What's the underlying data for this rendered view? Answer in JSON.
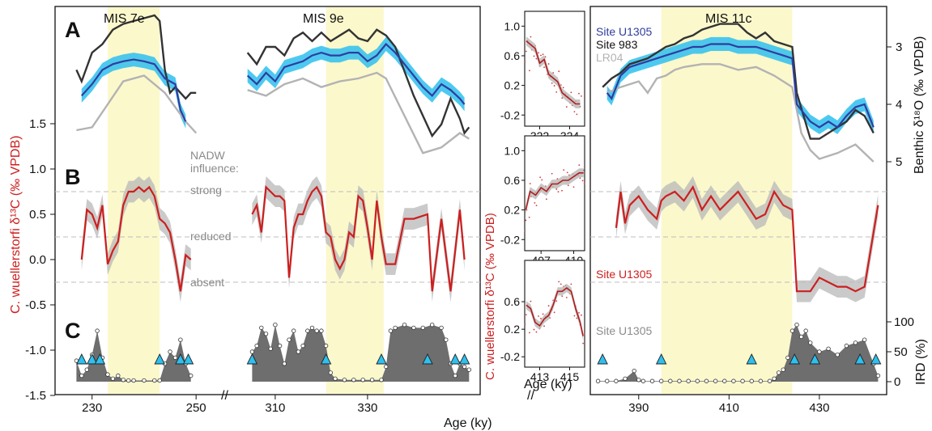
{
  "chart_data": {
    "type": "line",
    "x_axis_label": "Age (ky)",
    "y_axis_left_label": "C. wuellerstorfi δ¹³C (‰ VPDB)",
    "y_axis_right_top_label": "Benthic δ¹⁸O (‰ VPDB)",
    "y_axis_right_bottom_label": "IRD (%)",
    "inset_y_label": "C. wuellerstorfi δ¹³C (‰ VPDB)",
    "inset_x_label": "Age (ky)",
    "left_ticks": [
      "1.5",
      "1.0",
      "0.5",
      "0.0",
      "-0.5",
      "-1.0",
      "-1.5"
    ],
    "right_d18o_ticks": [
      "3",
      "4",
      "5"
    ],
    "right_ird_ticks": [
      "100",
      "50",
      "0"
    ],
    "panels": [
      {
        "letter": "A"
      },
      {
        "letter": "B"
      },
      {
        "letter": "C"
      }
    ],
    "nadw": {
      "title_line1": "NADW",
      "title_line2": "influence:",
      "levels": [
        {
          "label": "strong",
          "d13c": 0.75
        },
        {
          "label": "reduced",
          "d13c": 0.25
        },
        {
          "label": "absent",
          "d13c": -0.25
        }
      ]
    },
    "legend": [
      {
        "label": "Site U1305",
        "color": "#2f3d9e"
      },
      {
        "label": "Site 983",
        "color": "#222222"
      },
      {
        "label": "LR04",
        "color": "#b3b3b3"
      }
    ],
    "series_labels": {
      "d13c": "Site U1305",
      "ird": "Site U1305"
    },
    "segments": [
      {
        "name": "MIS 7e",
        "xlim": [
          226,
          252
        ],
        "ticks": [
          "230",
          "250"
        ],
        "mis_band": [
          233,
          243
        ],
        "d18o_u1305": {
          "x": [
            228,
            230,
            232,
            234,
            236,
            238,
            240,
            242,
            244,
            246,
            247,
            248
          ],
          "y": [
            3.85,
            3.65,
            3.4,
            3.3,
            3.25,
            3.22,
            3.25,
            3.3,
            3.55,
            3.65,
            4.1,
            4.3
          ]
        },
        "d18o_983": {
          "x": [
            227,
            228,
            230,
            232,
            234,
            236,
            238,
            240,
            242,
            243,
            244,
            245,
            246,
            248,
            249,
            250
          ],
          "y": [
            3.4,
            3.6,
            3.1,
            2.95,
            2.7,
            2.6,
            2.55,
            2.5,
            2.45,
            2.55,
            3.4,
            3.8,
            3.7,
            3.9,
            3.8,
            3.8
          ]
        },
        "d18o_lr04": {
          "x": [
            227,
            230,
            233,
            236,
            240,
            244,
            248,
            250
          ],
          "y": [
            4.45,
            4.4,
            4.0,
            3.6,
            3.5,
            3.8,
            4.3,
            4.5
          ]
        },
        "d13c": {
          "x": [
            228,
            229,
            230,
            231,
            232,
            233,
            234,
            235,
            236,
            237,
            238,
            239,
            240,
            241,
            242,
            243,
            244,
            245,
            246,
            247,
            248,
            249
          ],
          "y": [
            0.0,
            0.55,
            0.5,
            0.35,
            0.6,
            -0.05,
            0.1,
            0.2,
            0.6,
            0.75,
            0.75,
            0.8,
            0.75,
            0.8,
            0.7,
            0.45,
            0.4,
            0.3,
            0.0,
            -0.35,
            0.05,
            0.0
          ]
        },
        "ird": {
          "x": [
            227,
            228,
            229,
            230,
            231,
            232,
            233,
            234,
            235,
            236,
            237,
            238,
            240,
            242,
            243,
            244,
            245,
            246,
            247,
            248,
            249
          ],
          "y": [
            35,
            10,
            20,
            45,
            85,
            40,
            12,
            5,
            10,
            3,
            2,
            2,
            2,
            2,
            2,
            30,
            50,
            40,
            70,
            30,
            10
          ]
        },
        "triangles": [
          228,
          230,
          231.5,
          243,
          247,
          248.5
        ]
      },
      {
        "name": "MIS 9e",
        "xlim": [
          303,
          353
        ],
        "ticks": [
          "310",
          "330"
        ],
        "mis_band": [
          321,
          333.5
        ],
        "d18o_u1305": {
          "x": [
            304,
            306,
            308,
            310,
            312,
            314,
            316,
            318,
            320,
            322,
            324,
            326,
            328,
            330,
            332,
            334,
            336,
            338,
            340,
            342,
            344,
            346,
            348,
            350,
            351
          ],
          "y": [
            3.5,
            3.65,
            3.45,
            3.6,
            3.35,
            3.3,
            3.25,
            3.15,
            3.1,
            3.15,
            3.15,
            3.1,
            3.1,
            3.25,
            3.15,
            2.95,
            3.1,
            3.3,
            3.5,
            3.7,
            3.85,
            3.65,
            3.75,
            3.9,
            4.0
          ]
        },
        "d18o_983": {
          "x": [
            304,
            306,
            308,
            310,
            312,
            314,
            316,
            318,
            320,
            322,
            324,
            326,
            328,
            330,
            332,
            334,
            336,
            340,
            344,
            346,
            348,
            350,
            351,
            352
          ],
          "y": [
            3.1,
            3.3,
            3.0,
            3.0,
            3.15,
            2.85,
            2.75,
            2.9,
            2.75,
            2.9,
            2.8,
            2.7,
            2.85,
            2.9,
            2.7,
            2.8,
            3.0,
            3.85,
            4.55,
            4.35,
            3.9,
            4.25,
            4.5,
            4.4
          ]
        },
        "d18o_lr04": {
          "x": [
            304,
            308,
            312,
            316,
            320,
            324,
            328,
            332,
            334,
            338,
            342,
            346,
            350,
            352
          ],
          "y": [
            3.75,
            3.85,
            3.65,
            3.55,
            3.7,
            3.6,
            3.55,
            3.45,
            3.55,
            4.2,
            4.85,
            4.75,
            4.5,
            4.6
          ]
        },
        "d13c": {
          "x": [
            305,
            306,
            307,
            308,
            309,
            310,
            311,
            312,
            313,
            314,
            315,
            316,
            317,
            318,
            319,
            320,
            321,
            322,
            323,
            324,
            325,
            326,
            327,
            328,
            329,
            330,
            331,
            332,
            333,
            334,
            336,
            338,
            340,
            343,
            344,
            345,
            346,
            348,
            350,
            351
          ],
          "y": [
            0.5,
            0.6,
            0.3,
            0.8,
            0.75,
            0.7,
            0.7,
            0.65,
            -0.2,
            0.35,
            0.5,
            0.5,
            0.65,
            0.75,
            0.8,
            0.7,
            0.3,
            0.25,
            0.0,
            -0.1,
            0.0,
            0.3,
            0.25,
            0.7,
            0.65,
            0.35,
            0.0,
            0.65,
            0.25,
            -0.05,
            -0.05,
            0.45,
            0.45,
            0.5,
            -0.35,
            0.05,
            0.45,
            -0.35,
            0.55,
            0.0
          ]
        },
        "ird": {
          "x": [
            305,
            306,
            307,
            308,
            309,
            310,
            311,
            312,
            313,
            314,
            315,
            316,
            317,
            318,
            319,
            320,
            321,
            322,
            323,
            325,
            327,
            329,
            331,
            333,
            334,
            335,
            336,
            338,
            340,
            342,
            344,
            346,
            347,
            348,
            349,
            350,
            351,
            352
          ],
          "y": [
            50,
            60,
            90,
            80,
            55,
            95,
            60,
            30,
            70,
            85,
            50,
            60,
            85,
            90,
            85,
            85,
            60,
            15,
            5,
            3,
            3,
            3,
            3,
            3,
            25,
            85,
            90,
            95,
            90,
            90,
            95,
            90,
            70,
            30,
            10,
            30,
            25,
            20
          ]
        },
        "triangles": [
          305,
          321,
          333,
          343,
          349,
          351
        ]
      },
      {
        "name": "MIS 11c",
        "xlim": [
          380,
          444
        ],
        "ticks": [
          "390",
          "410",
          "430"
        ],
        "mis_band": [
          395,
          424
        ],
        "d18o_u1305": {
          "x": [
            383,
            384,
            386,
            388,
            390,
            392,
            394,
            396,
            398,
            400,
            402,
            404,
            406,
            408,
            410,
            412,
            414,
            416,
            418,
            420,
            422,
            424,
            425,
            428,
            430,
            432,
            434,
            436,
            438,
            440,
            441,
            442
          ],
          "y": [
            3.8,
            3.9,
            3.5,
            3.35,
            3.3,
            3.25,
            3.2,
            3.15,
            3.1,
            3.05,
            3.0,
            3.0,
            2.95,
            2.95,
            2.95,
            3.0,
            3.0,
            3.0,
            3.05,
            3.1,
            3.15,
            3.2,
            4.0,
            4.3,
            4.4,
            4.3,
            4.4,
            4.2,
            4.05,
            4.0,
            4.2,
            4.4
          ]
        },
        "d18o_983": {
          "x": [
            382,
            384,
            386,
            388,
            390,
            392,
            394,
            396,
            398,
            400,
            402,
            404,
            406,
            408,
            410,
            412,
            414,
            416,
            418,
            420,
            422,
            424,
            425,
            428,
            430,
            432,
            434,
            436,
            438,
            440,
            442
          ],
          "y": [
            3.7,
            3.55,
            3.45,
            3.3,
            3.25,
            3.2,
            3.1,
            3.0,
            2.95,
            2.85,
            2.8,
            2.7,
            2.65,
            2.6,
            2.6,
            2.6,
            2.75,
            2.85,
            2.75,
            2.9,
            2.95,
            3.0,
            3.8,
            4.6,
            4.6,
            4.5,
            4.4,
            4.3,
            4.1,
            4.2,
            4.5
          ]
        },
        "d18o_lr04": {
          "x": [
            383,
            386,
            390,
            392,
            394,
            396,
            398,
            400,
            404,
            408,
            412,
            416,
            420,
            424,
            426,
            428,
            430,
            434,
            438,
            442
          ],
          "y": [
            3.8,
            3.7,
            3.6,
            3.8,
            3.55,
            3.5,
            3.4,
            3.35,
            3.3,
            3.3,
            3.4,
            3.35,
            3.5,
            3.7,
            4.5,
            4.8,
            4.95,
            4.85,
            4.7,
            5.0
          ]
        },
        "d13c": {
          "x": [
            385,
            386,
            387,
            388,
            390,
            392,
            394,
            395,
            396,
            398,
            400,
            402,
            404,
            406,
            408,
            410,
            412,
            414,
            416,
            418,
            420,
            422,
            424,
            425,
            426,
            428,
            430,
            432,
            434,
            436,
            438,
            440,
            441,
            442,
            443
          ],
          "y": [
            0.35,
            0.75,
            0.4,
            0.6,
            0.7,
            0.55,
            0.45,
            0.65,
            0.7,
            0.75,
            0.65,
            0.8,
            0.55,
            0.7,
            0.55,
            0.65,
            0.75,
            0.6,
            0.45,
            0.5,
            0.75,
            0.6,
            0.55,
            -0.35,
            -0.35,
            -0.35,
            -0.2,
            -0.25,
            -0.3,
            -0.3,
            -0.35,
            -0.3,
            0.0,
            0.3,
            0.6
          ]
        },
        "ird": {
          "x": [
            381,
            383,
            385,
            387,
            389,
            390,
            391,
            393,
            395,
            397,
            399,
            401,
            403,
            405,
            407,
            409,
            411,
            413,
            415,
            417,
            419,
            420,
            421,
            422,
            423,
            424,
            425,
            426,
            427,
            428,
            430,
            432,
            434,
            436,
            438,
            440,
            442,
            443
          ],
          "y": [
            1,
            1,
            1,
            5,
            18,
            3,
            1,
            1,
            1,
            1,
            1,
            1,
            1,
            1,
            1,
            1,
            1,
            1,
            1,
            1,
            1,
            5,
            15,
            20,
            40,
            85,
            95,
            75,
            85,
            65,
            50,
            55,
            45,
            60,
            65,
            70,
            30,
            10
          ]
        },
        "triangles": [
          382,
          395,
          415,
          424.5,
          429,
          439,
          442.5
        ]
      }
    ],
    "insets": [
      {
        "xlim": [
          321,
          325
        ],
        "ticks": [
          "322",
          "324"
        ],
        "yticks": [
          "1.0",
          "0.6",
          "0.2",
          "-0.2"
        ],
        "x": [
          321.1,
          321.4,
          321.7,
          322.0,
          322.3,
          322.6,
          322.9,
          323.2,
          323.5,
          323.8,
          324.1,
          324.4,
          324.7
        ],
        "y": [
          0.8,
          0.75,
          0.7,
          0.5,
          0.55,
          0.35,
          0.3,
          0.25,
          0.1,
          0.05,
          0.0,
          -0.05,
          -0.05
        ]
      },
      {
        "xlim": [
          405.5,
          411
        ],
        "ticks": [
          "407",
          "410"
        ],
        "yticks": [
          "1.0",
          "0.6",
          "0.2",
          "-0.2"
        ],
        "x": [
          405.6,
          406.0,
          406.5,
          407.0,
          407.5,
          408.0,
          408.5,
          409.0,
          409.5,
          410.0,
          410.5,
          410.9
        ],
        "y": [
          0.2,
          0.45,
          0.4,
          0.5,
          0.45,
          0.55,
          0.55,
          0.6,
          0.6,
          0.65,
          0.7,
          0.7
        ]
      },
      {
        "xlim": [
          412,
          416
        ],
        "ticks": [
          "413",
          "415"
        ],
        "yticks": [
          "0.6",
          "0.2",
          "-0.2"
        ],
        "x": [
          412.1,
          412.4,
          412.7,
          413.0,
          413.3,
          413.6,
          413.9,
          414.2,
          414.5,
          414.8,
          415.1,
          415.4,
          415.7,
          415.9
        ],
        "y": [
          0.55,
          0.5,
          0.3,
          0.25,
          0.35,
          0.4,
          0.55,
          0.75,
          0.75,
          0.8,
          0.75,
          0.5,
          0.3,
          0.1
        ]
      }
    ]
  }
}
